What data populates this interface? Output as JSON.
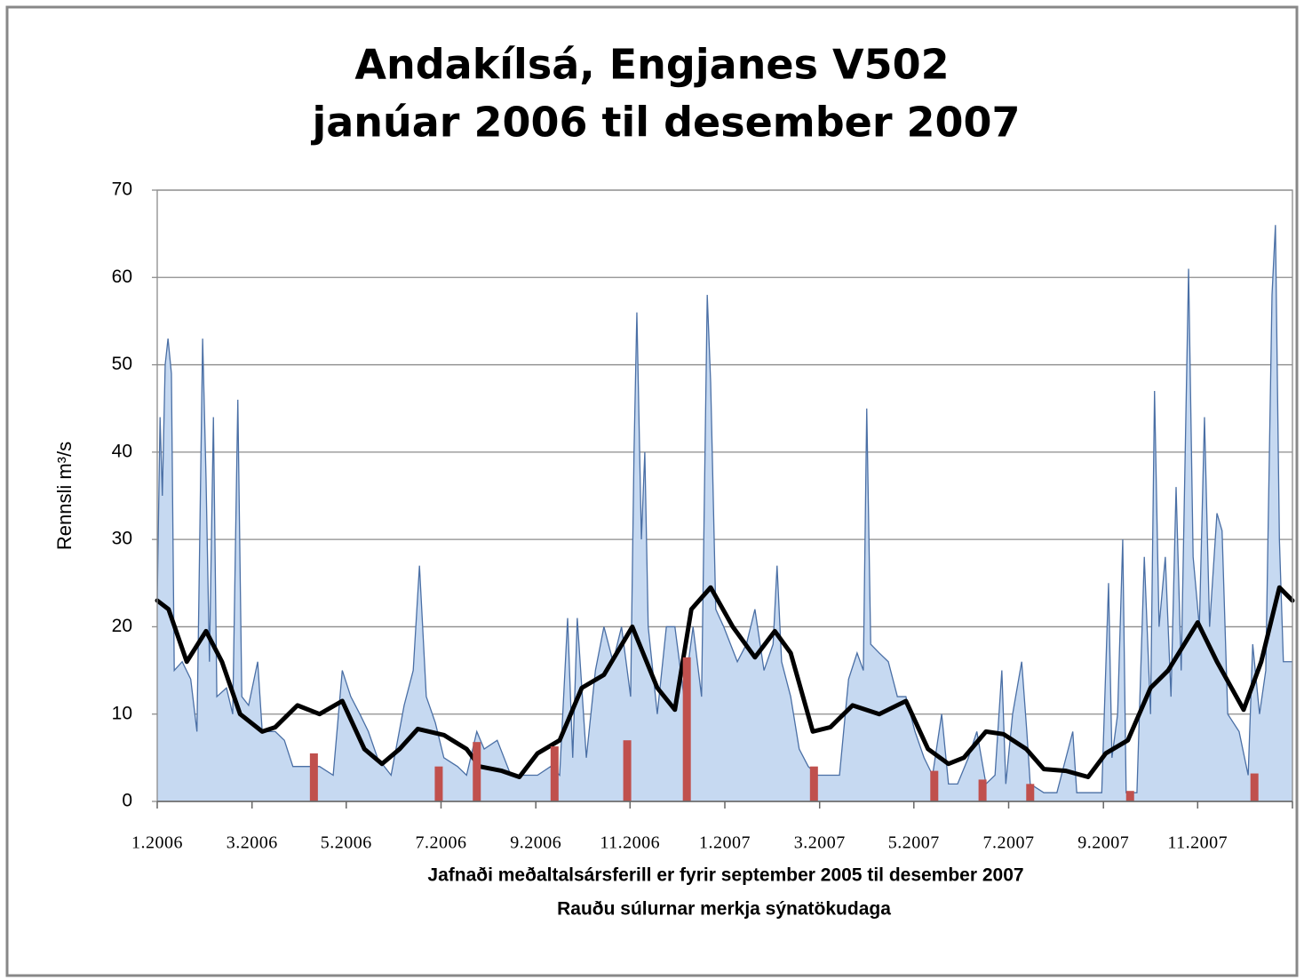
{
  "chart_data": {
    "type": "area",
    "title": "Andakílsá, Engjanes V502",
    "subtitle": "janúar 2006 til desember 2007",
    "y_label": "Rennsli m³/s",
    "notes": [
      "Jafnaði meðaltalsársferill er fyrir september 2005 til desember 2007",
      "Rauðu súlurnar merkja sýnatökudaga"
    ],
    "xlim": [
      2006,
      2008
    ],
    "xticks": [
      {
        "value": 2006,
        "label": "1.2006"
      },
      {
        "value": 2006.167,
        "label": "3.2006"
      },
      {
        "value": 2006.333,
        "label": "5.2006"
      },
      {
        "value": 2006.5,
        "label": "7.2006"
      },
      {
        "value": 2006.667,
        "label": "9.2006"
      },
      {
        "value": 2006.833,
        "label": "11.2006"
      },
      {
        "value": 2007,
        "label": "1.2007"
      },
      {
        "value": 2007.167,
        "label": "3.2007"
      },
      {
        "value": 2007.333,
        "label": "5.2007"
      },
      {
        "value": 2007.5,
        "label": "7.2007"
      },
      {
        "value": 2007.667,
        "label": "9.2007"
      },
      {
        "value": 2007.833,
        "label": "11.2007"
      }
    ],
    "ylim": [
      0,
      70
    ],
    "yticks": [
      0,
      10,
      20,
      30,
      40,
      50,
      60,
      70
    ],
    "grid": true,
    "series": [
      {
        "type": "area",
        "color": "#c6d9f1",
        "line_color": "#4a6fa5",
        "x": [
          2006.0,
          2006.005,
          2006.009,
          2006.014,
          2006.019,
          2006.025,
          2006.03,
          2006.044,
          2006.059,
          2006.07,
          2006.08,
          2006.086,
          2006.092,
          2006.099,
          2006.105,
          2006.122,
          2006.133,
          2006.142,
          2006.149,
          2006.161,
          2006.177,
          2006.185,
          2006.208,
          2006.224,
          2006.239,
          2006.263,
          2006.286,
          2006.31,
          2006.326,
          2006.341,
          2006.357,
          2006.372,
          2006.388,
          2006.412,
          2006.435,
          2006.451,
          2006.462,
          2006.474,
          2006.49,
          2006.505,
          2006.529,
          2006.545,
          2006.563,
          2006.576,
          2006.599,
          2006.623,
          2006.646,
          2006.67,
          2006.693,
          2006.709,
          2006.723,
          2006.732,
          2006.74,
          2006.756,
          2006.772,
          2006.787,
          2006.803,
          2006.818,
          2006.834,
          2006.84,
          2006.845,
          2006.853,
          2006.859,
          2006.865,
          2006.881,
          2006.897,
          2006.912,
          2006.928,
          2006.944,
          2006.959,
          2006.969,
          2006.975,
          2006.984,
          2006.998,
          2007.022,
          2007.038,
          2007.053,
          2007.069,
          2007.085,
          2007.092,
          2007.1,
          2007.116,
          2007.131,
          2007.147,
          2007.163,
          2007.186,
          2007.202,
          2007.218,
          2007.233,
          2007.244,
          2007.25,
          2007.257,
          2007.272,
          2007.288,
          2007.304,
          2007.319,
          2007.335,
          2007.351,
          2007.366,
          2007.382,
          2007.394,
          2007.41,
          2007.429,
          2007.444,
          2007.46,
          2007.476,
          2007.488,
          2007.495,
          2007.507,
          2007.523,
          2007.532,
          2007.538,
          2007.562,
          2007.585,
          2007.613,
          2007.62,
          2007.64,
          2007.664,
          2007.676,
          2007.682,
          2007.692,
          2007.701,
          2007.707,
          2007.726,
          2007.739,
          2007.75,
          2007.757,
          2007.765,
          2007.776,
          2007.786,
          2007.795,
          2007.804,
          2007.817,
          2007.825,
          2007.836,
          2007.845,
          2007.854,
          2007.867,
          2007.876,
          2007.886,
          2007.906,
          2007.922,
          2007.93,
          2007.942,
          2007.953,
          2007.964,
          2007.97,
          2007.977,
          2007.984,
          2008.0
        ],
        "values": [
          23,
          44,
          35,
          50,
          53,
          49,
          15,
          16,
          14,
          8,
          53,
          37,
          16,
          44,
          12,
          13,
          10,
          46,
          12,
          11,
          16,
          8,
          8,
          7,
          4,
          4,
          4,
          3,
          15,
          12,
          10,
          8,
          5,
          3,
          11,
          15,
          27,
          12,
          9,
          5,
          4,
          3,
          8,
          6,
          7,
          3,
          3,
          3,
          4,
          3,
          21,
          5,
          21,
          5,
          15,
          20,
          16,
          20,
          12,
          40,
          56,
          30,
          40,
          20,
          10,
          20,
          20,
          12,
          20,
          12,
          58,
          48,
          22,
          20,
          16,
          18,
          22,
          15,
          18,
          27,
          16,
          12,
          6,
          4,
          3,
          3,
          3,
          14,
          17,
          15,
          45,
          18,
          17,
          16,
          12,
          12,
          8,
          5,
          3,
          10,
          2,
          2,
          5,
          8,
          2,
          3,
          15,
          2,
          10,
          16,
          8,
          2,
          1,
          1,
          8,
          1,
          1,
          1,
          25,
          5,
          10,
          30,
          1,
          1,
          28,
          10,
          47,
          20,
          28,
          12,
          36,
          15,
          61,
          28,
          20,
          44,
          20,
          33,
          31,
          10,
          8,
          3,
          18,
          10,
          15,
          58,
          66,
          30,
          16,
          16
        ]
      },
      {
        "type": "line",
        "color": "#000000",
        "x": [
          2006.0,
          2006.02,
          2006.052,
          2006.086,
          2006.114,
          2006.146,
          2006.185,
          2006.208,
          2006.247,
          2006.286,
          2006.326,
          2006.365,
          2006.396,
          2006.427,
          2006.459,
          2006.505,
          2006.545,
          2006.568,
          2006.607,
          2006.638,
          2006.67,
          2006.709,
          2006.748,
          2006.787,
          2006.837,
          2006.881,
          2006.912,
          2006.941,
          2006.975,
          2007.014,
          2007.053,
          2007.088,
          2007.116,
          2007.155,
          2007.186,
          2007.225,
          2007.272,
          2007.319,
          2007.358,
          2007.394,
          2007.421,
          2007.46,
          2007.491,
          2007.531,
          2007.562,
          2007.601,
          2007.64,
          2007.671,
          2007.71,
          2007.75,
          2007.781,
          2007.833,
          2007.867,
          2007.914,
          2007.945,
          2007.977,
          2008.0
        ],
        "values": [
          23,
          22,
          16,
          19.5,
          16,
          10,
          8,
          8.5,
          11,
          10,
          11.5,
          6,
          4.3,
          6,
          8.3,
          7.6,
          6,
          4,
          3.5,
          2.8,
          5.5,
          7,
          13,
          14.5,
          20,
          13,
          10.5,
          22,
          24.5,
          20,
          16.5,
          19.5,
          17,
          8,
          8.5,
          11,
          10,
          11.5,
          6,
          4.3,
          5,
          8,
          7.7,
          6,
          3.7,
          3.5,
          2.8,
          5.5,
          7,
          13,
          15,
          20.5,
          16,
          10.5,
          16,
          24.5,
          23
        ]
      },
      {
        "type": "bar",
        "color": "#c0504d",
        "x": [
          2006.276,
          2006.496,
          2006.563,
          2006.7,
          2006.828,
          2006.933,
          2007.157,
          2007.369,
          2007.454,
          2007.538,
          2007.714,
          2007.933
        ],
        "values": [
          5.5,
          4,
          6.8,
          6.3,
          7,
          16.5,
          4,
          3.5,
          2.5,
          2,
          1.2,
          3.2
        ]
      }
    ]
  }
}
